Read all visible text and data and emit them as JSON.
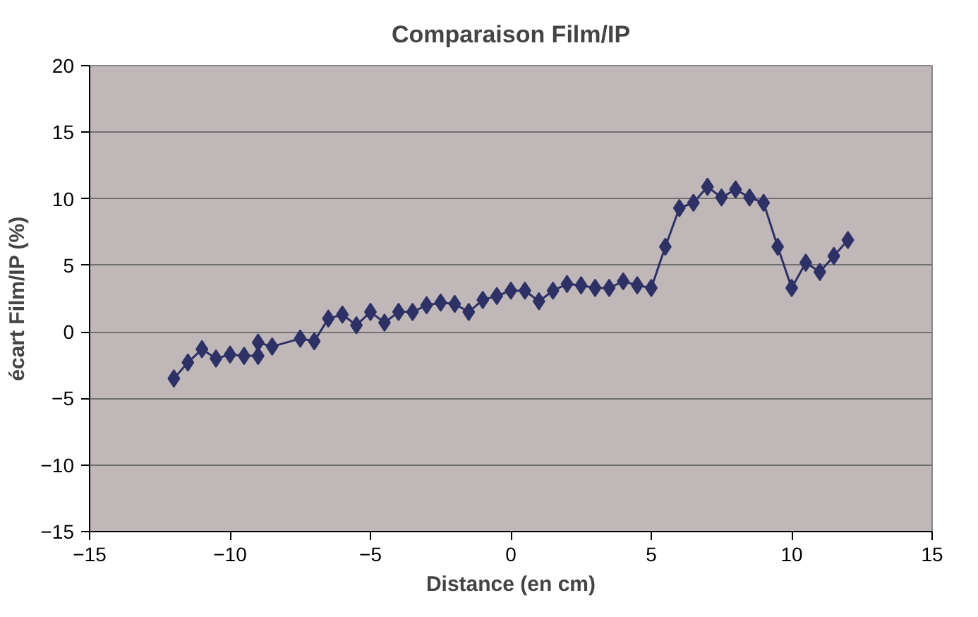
{
  "chart_data": {
    "type": "line",
    "title": "Comparaison Film/IP",
    "xlabel": "Distance (en cm)",
    "ylabel": "écart Film/IP (%)",
    "series": [
      {
        "color": "#2e3166",
        "x": [
          -12.0,
          -11.5,
          -11.0,
          -10.5,
          -10.0,
          -9.5,
          -9.0,
          -9.0,
          -8.5,
          -7.5,
          -7.0,
          -6.5,
          -6.0,
          -5.5,
          -5.0,
          -4.5,
          -4.0,
          -3.5,
          -3.0,
          -2.5,
          -2.0,
          -1.5,
          -1.0,
          -0.5,
          0.0,
          0.5,
          1.0,
          1.5,
          2.0,
          2.5,
          3.0,
          3.5,
          4.0,
          4.5,
          5.0,
          5.5,
          6.0,
          6.5,
          7.0,
          7.5,
          8.0,
          8.5,
          9.0,
          9.5,
          10.0,
          10.5,
          11.0,
          11.5,
          12.0
        ],
        "values": [
          -3.5,
          -2.3,
          -1.3,
          -2.0,
          -1.7,
          -1.8,
          -1.8,
          -0.8,
          -1.1,
          -0.5,
          -0.7,
          1.0,
          1.3,
          0.5,
          1.5,
          0.7,
          1.5,
          1.5,
          2.0,
          2.2,
          2.1,
          1.5,
          2.4,
          2.7,
          3.1,
          3.1,
          2.3,
          3.1,
          3.6,
          3.5,
          3.3,
          3.3,
          3.8,
          3.5,
          3.3,
          6.4,
          9.3,
          9.7,
          10.9,
          10.1,
          10.7,
          10.1,
          9.7,
          6.4,
          3.3,
          5.2,
          4.5,
          5.7,
          6.9
        ]
      }
    ],
    "xlim": [
      -15,
      15
    ],
    "ylim": [
      -15,
      20
    ],
    "xticks": [
      -15,
      -10,
      -5,
      0,
      5,
      10,
      15
    ],
    "yticks": [
      -15,
      -10,
      -5,
      0,
      5,
      10,
      15,
      20
    ],
    "grid": "y",
    "marker": "diamond",
    "line_style": "solid"
  }
}
